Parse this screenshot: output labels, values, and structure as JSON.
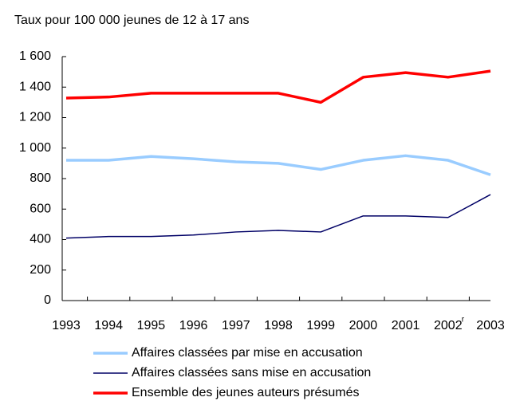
{
  "chart_data": {
    "type": "line",
    "title": "Taux pour 100 000 jeunes de 12 à 17 ans",
    "categories": [
      "1993",
      "1994",
      "1995",
      "1996",
      "1997",
      "1998",
      "1999",
      "2000",
      "2001",
      "2002",
      "2003"
    ],
    "category_notes": [
      null,
      null,
      null,
      null,
      null,
      null,
      null,
      null,
      null,
      "r",
      null
    ],
    "series": [
      {
        "name": "Affaires classées par mise en accusation",
        "color": "#99ccff",
        "values": [
          920,
          920,
          945,
          930,
          910,
          900,
          860,
          920,
          950,
          920,
          825
        ]
      },
      {
        "name": "Affaires classées sans mise en accusation",
        "color": "#000066",
        "values": [
          410,
          420,
          420,
          430,
          450,
          460,
          450,
          555,
          555,
          545,
          695
        ]
      },
      {
        "name": "Ensemble des jeunes auteurs présumés",
        "color": "#ff0000",
        "values": [
          1328,
          1335,
          1360,
          1360,
          1360,
          1360,
          1300,
          1465,
          1495,
          1465,
          1505
        ]
      }
    ],
    "ylim": [
      0,
      1600
    ],
    "yticks": [
      0,
      200,
      400,
      600,
      800,
      {
        "value": 1000,
        "label": "1 000"
      },
      {
        "value": 1200,
        "label": "1 200"
      },
      {
        "value": 1400,
        "label": "1 400"
      },
      {
        "value": 1600,
        "label": "1 600"
      }
    ],
    "grid": false
  }
}
